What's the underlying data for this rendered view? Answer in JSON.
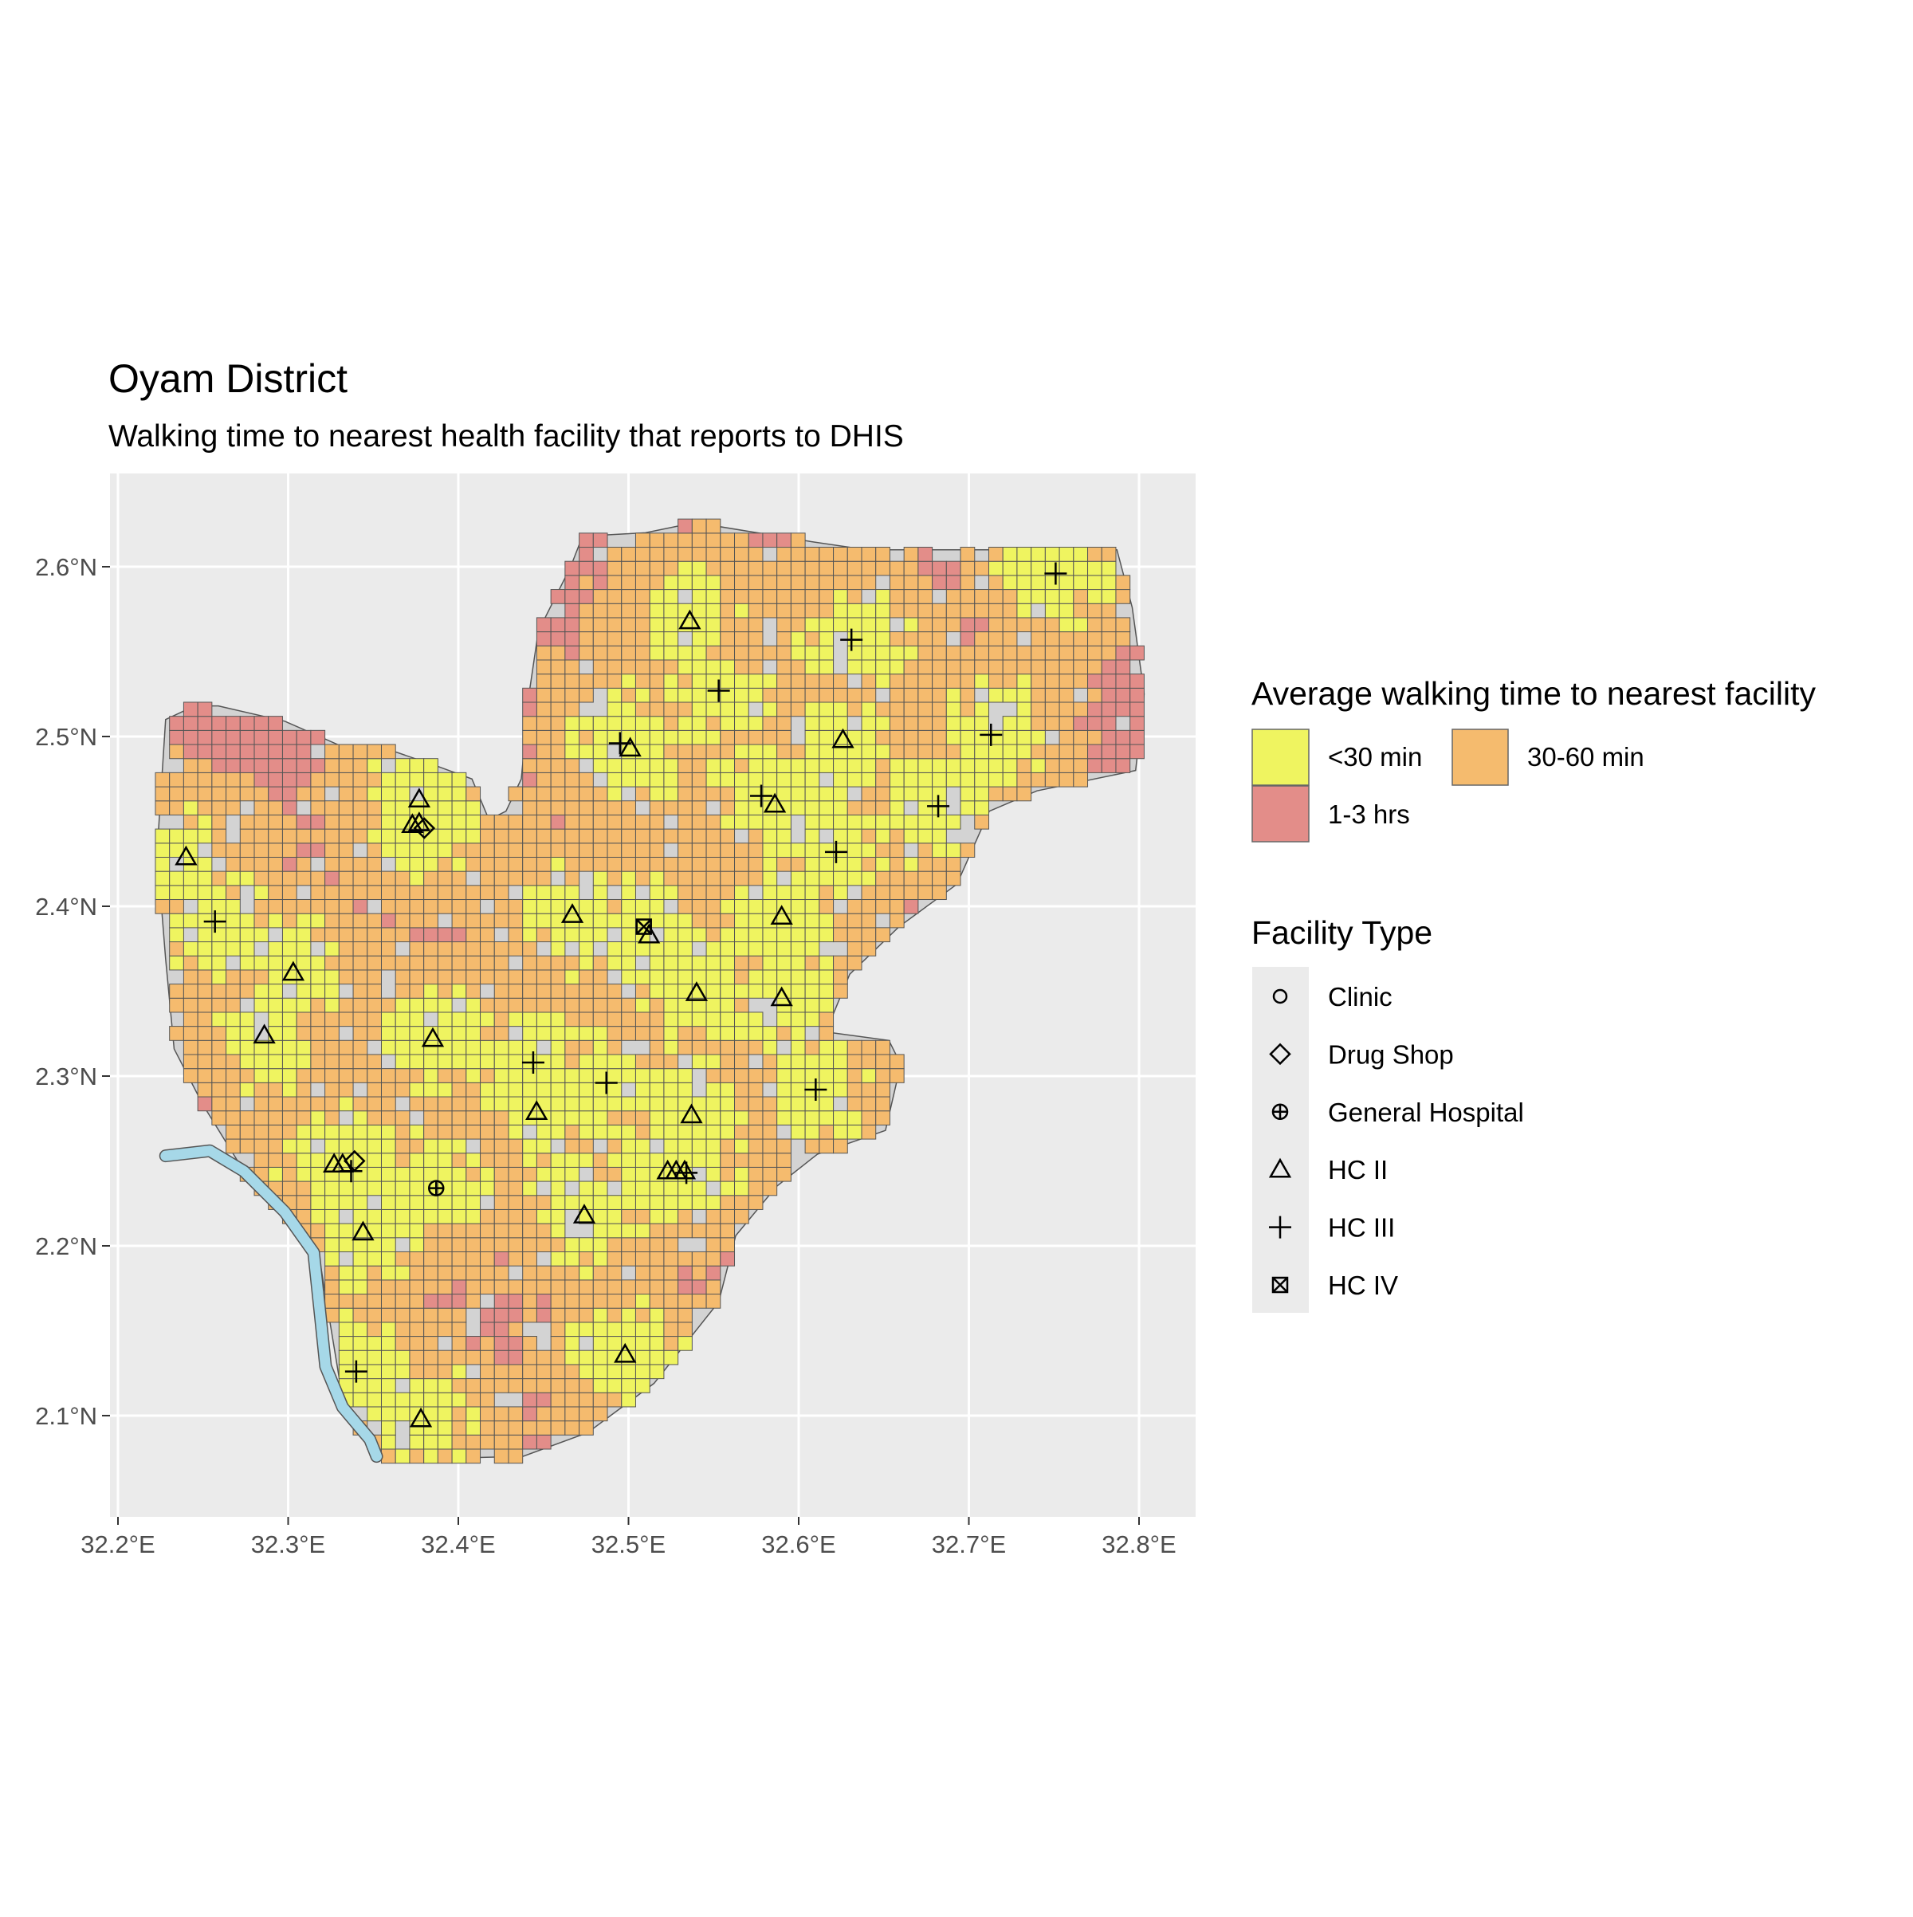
{
  "chart_data": {
    "type": "map",
    "title": "Oyam District",
    "subtitle": "Walking time to nearest health facility that reports to DHIS",
    "x_ticks": [
      "32.2°E",
      "32.3°E",
      "32.4°E",
      "32.5°E",
      "32.6°E",
      "32.7°E",
      "32.8°E"
    ],
    "x_tick_values": [
      32.2,
      32.3,
      32.4,
      32.5,
      32.6,
      32.7,
      32.8
    ],
    "y_ticks": [
      "2.1°N",
      "2.2°N",
      "2.3°N",
      "2.4°N",
      "2.5°N",
      "2.6°N"
    ],
    "y_tick_values": [
      2.1,
      2.2,
      2.3,
      2.4,
      2.5,
      2.6
    ],
    "xlim": [
      32.197,
      32.832
    ],
    "ylim": [
      2.045,
      2.655
    ],
    "grid": true,
    "legend_position": "right",
    "fill_legend": {
      "title": "Average walking time to nearest facility",
      "items": [
        {
          "label": "<30 min",
          "color": "#EFF460"
        },
        {
          "label": "30-60 min",
          "color": "#F5BB6E"
        },
        {
          "label": "1-3 hrs",
          "color": "#E38D89"
        }
      ]
    },
    "shape_legend": {
      "title": "Facility Type",
      "items": [
        {
          "label": "Clinic",
          "shape": "circle"
        },
        {
          "label": "Drug Shop",
          "shape": "diamond"
        },
        {
          "label": "General Hospital",
          "shape": "circle-plus"
        },
        {
          "label": "HC II",
          "shape": "triangle"
        },
        {
          "label": "HC III",
          "shape": "plus"
        },
        {
          "label": "HC IV",
          "shape": "square-x"
        }
      ]
    },
    "colors": {
      "panel": "#EBEBEB",
      "district": "#D3D3D3",
      "river": "#A6D8E8",
      "gridline": "#FFFFFF"
    },
    "district_outline": [
      [
        32.228,
        2.51
      ],
      [
        32.245,
        2.518
      ],
      [
        32.259,
        2.518
      ],
      [
        32.298,
        2.509
      ],
      [
        32.332,
        2.494
      ],
      [
        32.36,
        2.492
      ],
      [
        32.389,
        2.482
      ],
      [
        32.408,
        2.475
      ],
      [
        32.418,
        2.451
      ],
      [
        32.428,
        2.456
      ],
      [
        32.437,
        2.475
      ],
      [
        32.442,
        2.528
      ],
      [
        32.447,
        2.562
      ],
      [
        32.466,
        2.6
      ],
      [
        32.473,
        2.618
      ],
      [
        32.51,
        2.62
      ],
      [
        32.539,
        2.626
      ],
      [
        32.606,
        2.615
      ],
      [
        32.64,
        2.61
      ],
      [
        32.787,
        2.61
      ],
      [
        32.796,
        2.576
      ],
      [
        32.803,
        2.525
      ],
      [
        32.798,
        2.48
      ],
      [
        32.74,
        2.468
      ],
      [
        32.712,
        2.456
      ],
      [
        32.693,
        2.413
      ],
      [
        32.659,
        2.388
      ],
      [
        32.63,
        2.36
      ],
      [
        32.616,
        2.326
      ],
      [
        32.653,
        2.321
      ],
      [
        32.66,
        2.307
      ],
      [
        32.651,
        2.268
      ],
      [
        32.611,
        2.254
      ],
      [
        32.587,
        2.235
      ],
      [
        32.563,
        2.206
      ],
      [
        32.553,
        2.167
      ],
      [
        32.515,
        2.119
      ],
      [
        32.476,
        2.09
      ],
      [
        32.438,
        2.076
      ],
      [
        32.356,
        2.074
      ],
      [
        32.346,
        2.086
      ],
      [
        32.332,
        2.11
      ],
      [
        32.317,
        2.201
      ],
      [
        32.274,
        2.244
      ],
      [
        32.25,
        2.283
      ],
      [
        32.233,
        2.316
      ],
      [
        32.228,
        2.369
      ],
      [
        32.223,
        2.432
      ]
    ],
    "river": [
      [
        32.228,
        2.253
      ],
      [
        32.254,
        2.256
      ],
      [
        32.274,
        2.244
      ],
      [
        32.298,
        2.22
      ],
      [
        32.315,
        2.196
      ],
      [
        32.319,
        2.158
      ],
      [
        32.322,
        2.129
      ],
      [
        32.332,
        2.105
      ],
      [
        32.348,
        2.086
      ],
      [
        32.352,
        2.076
      ]
    ],
    "facilities": [
      {
        "type": "HC II",
        "lon": 32.377,
        "lat": 2.463
      },
      {
        "type": "HC II",
        "lon": 32.373,
        "lat": 2.448
      },
      {
        "type": "HC II",
        "lon": 32.377,
        "lat": 2.449
      },
      {
        "type": "HC II",
        "lon": 32.24,
        "lat": 2.429
      },
      {
        "type": "HC II",
        "lon": 32.303,
        "lat": 2.361
      },
      {
        "type": "HC II",
        "lon": 32.286,
        "lat": 2.324
      },
      {
        "type": "HC II",
        "lon": 32.385,
        "lat": 2.322
      },
      {
        "type": "HC II",
        "lon": 32.536,
        "lat": 2.568
      },
      {
        "type": "HC II",
        "lon": 32.501,
        "lat": 2.493
      },
      {
        "type": "HC II",
        "lon": 32.626,
        "lat": 2.498
      },
      {
        "type": "HC II",
        "lon": 32.586,
        "lat": 2.46
      },
      {
        "type": "HC II",
        "lon": 32.467,
        "lat": 2.395
      },
      {
        "type": "HC II",
        "lon": 32.512,
        "lat": 2.383
      },
      {
        "type": "HC II",
        "lon": 32.59,
        "lat": 2.394
      },
      {
        "type": "HC II",
        "lon": 32.54,
        "lat": 2.349
      },
      {
        "type": "HC II",
        "lon": 32.59,
        "lat": 2.346
      },
      {
        "type": "HC II",
        "lon": 32.446,
        "lat": 2.279
      },
      {
        "type": "HC II",
        "lon": 32.537,
        "lat": 2.277
      },
      {
        "type": "HC II",
        "lon": 32.327,
        "lat": 2.248
      },
      {
        "type": "HC II",
        "lon": 32.332,
        "lat": 2.248
      },
      {
        "type": "HC II",
        "lon": 32.344,
        "lat": 2.208
      },
      {
        "type": "HC II",
        "lon": 32.474,
        "lat": 2.218
      },
      {
        "type": "HC II",
        "lon": 32.523,
        "lat": 2.244
      },
      {
        "type": "HC II",
        "lon": 32.528,
        "lat": 2.244
      },
      {
        "type": "HC II",
        "lon": 32.533,
        "lat": 2.244
      },
      {
        "type": "HC II",
        "lon": 32.498,
        "lat": 2.136
      },
      {
        "type": "HC II",
        "lon": 32.378,
        "lat": 2.098
      },
      {
        "type": "Drug Shop",
        "lon": 32.339,
        "lat": 2.25
      },
      {
        "type": "Drug Shop",
        "lon": 32.38,
        "lat": 2.446
      },
      {
        "type": "General Hospital",
        "lon": 32.387,
        "lat": 2.234
      },
      {
        "type": "HC IV",
        "lon": 32.509,
        "lat": 2.388
      },
      {
        "type": "HC III",
        "lon": 32.257,
        "lat": 2.391
      },
      {
        "type": "HC III",
        "lon": 32.751,
        "lat": 2.596
      },
      {
        "type": "HC III",
        "lon": 32.631,
        "lat": 2.557
      },
      {
        "type": "HC III",
        "lon": 32.553,
        "lat": 2.527
      },
      {
        "type": "HC III",
        "lon": 32.495,
        "lat": 2.496
      },
      {
        "type": "HC III",
        "lon": 32.713,
        "lat": 2.501
      },
      {
        "type": "HC III",
        "lon": 32.578,
        "lat": 2.465
      },
      {
        "type": "HC III",
        "lon": 32.682,
        "lat": 2.459
      },
      {
        "type": "HC III",
        "lon": 32.622,
        "lat": 2.432
      },
      {
        "type": "HC III",
        "lon": 32.444,
        "lat": 2.308
      },
      {
        "type": "HC III",
        "lon": 32.487,
        "lat": 2.296
      },
      {
        "type": "HC III",
        "lon": 32.61,
        "lat": 2.292
      },
      {
        "type": "HC III",
        "lon": 32.337,
        "lat": 2.244
      },
      {
        "type": "HC III",
        "lon": 32.534,
        "lat": 2.243
      },
      {
        "type": "HC III",
        "lon": 32.34,
        "lat": 2.126
      }
    ]
  }
}
